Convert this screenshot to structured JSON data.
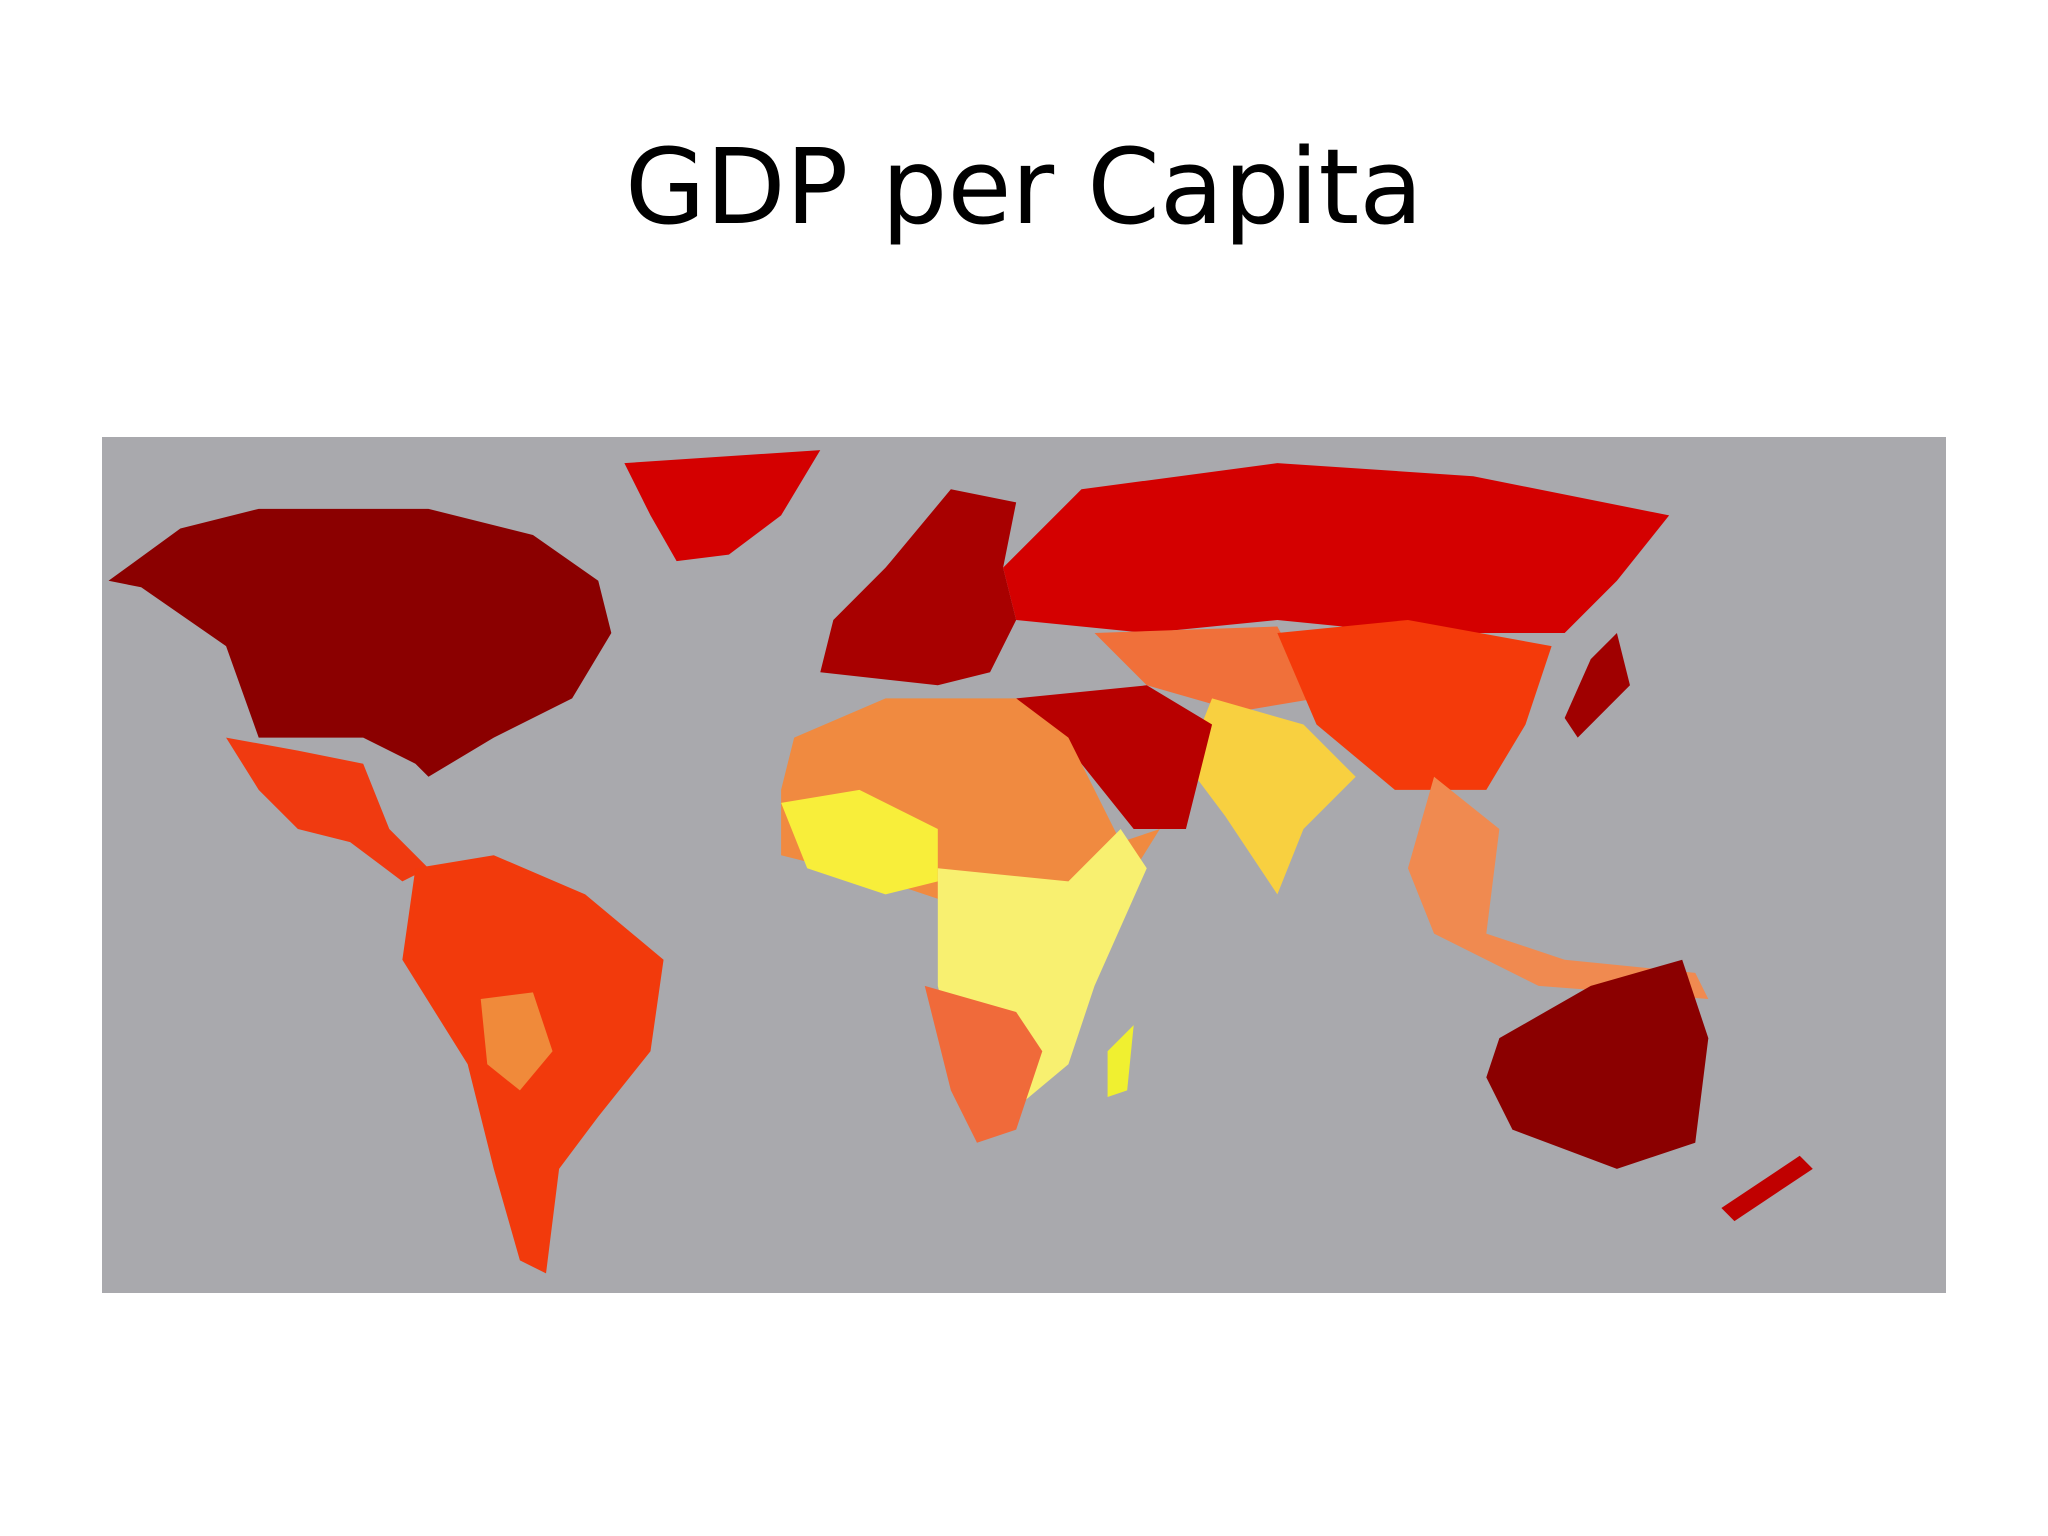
{
  "title": "GDP per Capita"
}
